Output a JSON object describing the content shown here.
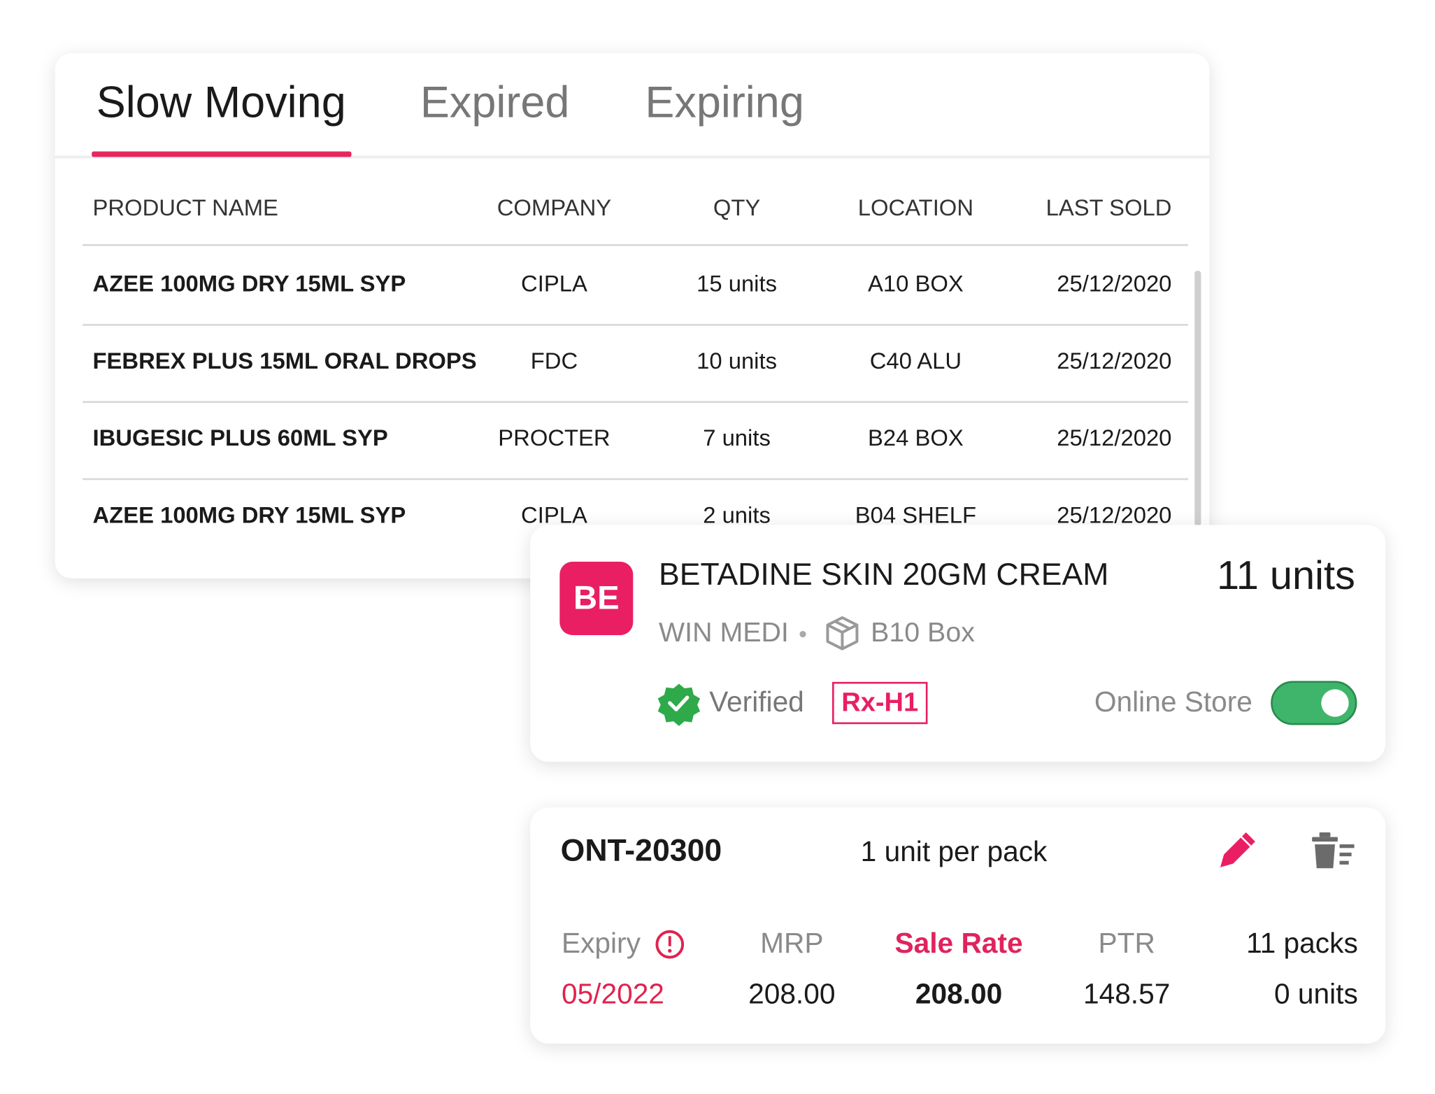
{
  "tabs": [
    "Slow Moving",
    "Expired",
    "Expiring"
  ],
  "table": {
    "headers": [
      "PRODUCT NAME",
      "COMPANY",
      "QTY",
      "LOCATION",
      "LAST SOLD"
    ],
    "rows": [
      [
        "AZEE 100MG DRY 15ML SYP",
        "CIPLA",
        "15 units",
        "A10 BOX",
        "25/12/2020"
      ],
      [
        "FEBREX PLUS 15ML ORAL DROPS",
        "FDC",
        "10 units",
        "C40 ALU",
        "25/12/2020"
      ],
      [
        "IBUGESIC PLUS 60ML SYP",
        "PROCTER",
        "7 units",
        "B24 BOX",
        "25/12/2020"
      ],
      [
        "AZEE 100MG DRY 15ML SYP",
        "CIPLA",
        "2 units",
        "B04 SHELF",
        "25/12/2020"
      ]
    ]
  },
  "product": {
    "initials": "BE",
    "name": "BETADINE SKIN 20GM CREAM",
    "quantity": "11 units",
    "company": "WIN MEDI",
    "location": "B10 Box",
    "status": "Verified",
    "schedule": "Rx-H1",
    "store_label": "Online Store"
  },
  "batch": {
    "code": "ONT-20300",
    "pack": "1 unit per pack",
    "expiry_label": "Expiry",
    "expiry": "05/2022",
    "mrp_label": "MRP",
    "mrp": "208.00",
    "sale_rate_label": "Sale Rate",
    "sale_rate": "208.00",
    "ptr_label": "PTR",
    "ptr": "148.57",
    "packs": "11 packs",
    "units": "0 units"
  }
}
